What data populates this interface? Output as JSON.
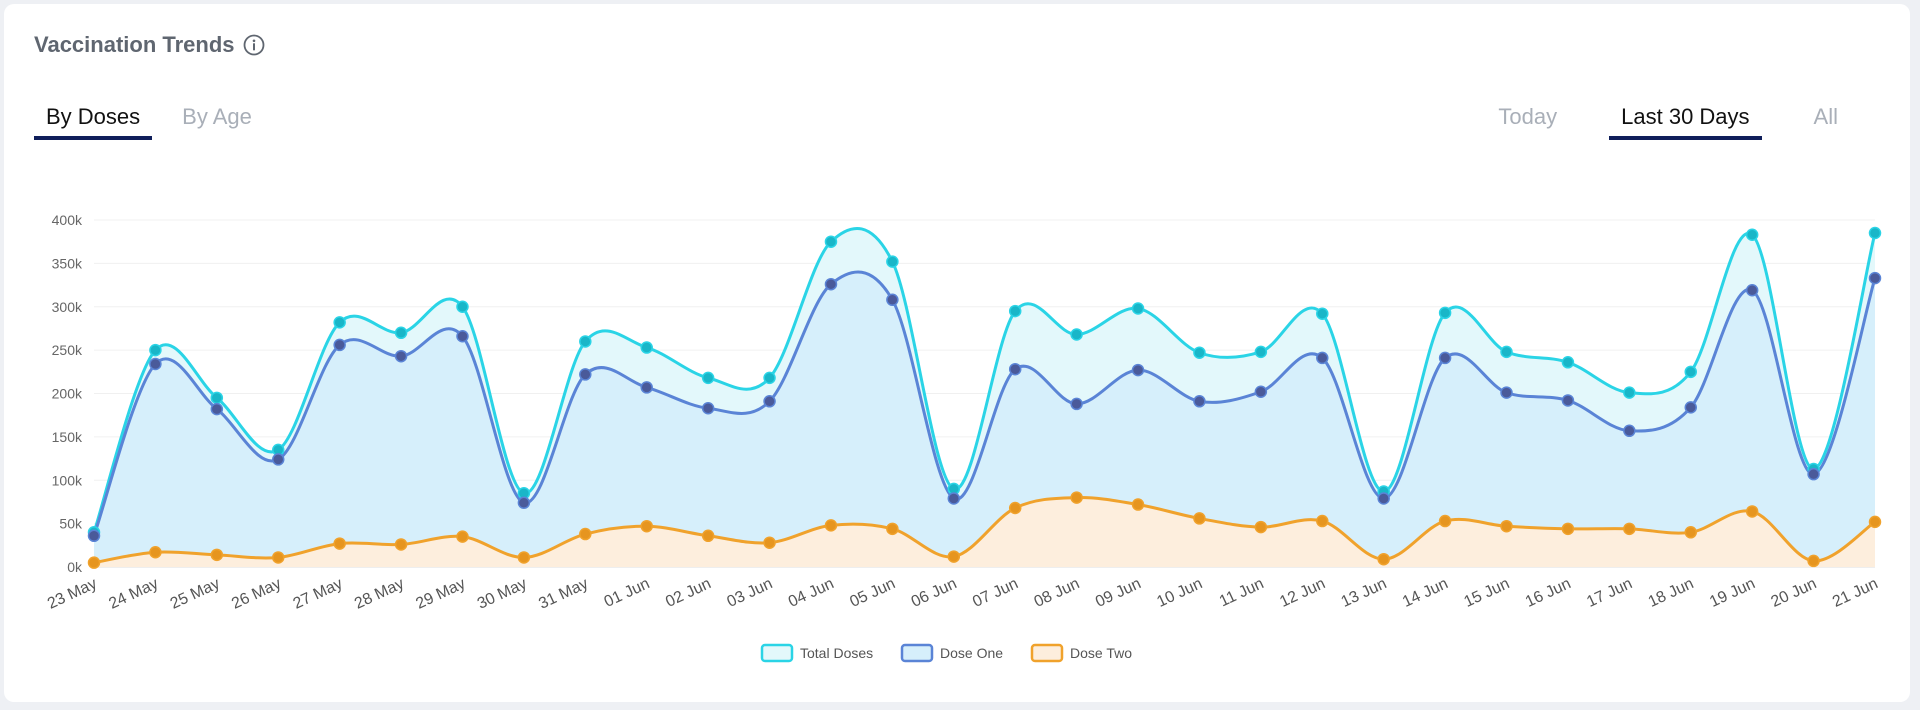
{
  "header": {
    "title": "Vaccination Trends"
  },
  "tabs_left": [
    {
      "label": "By Doses",
      "active": true
    },
    {
      "label": "By Age",
      "active": false
    }
  ],
  "tabs_right": [
    {
      "label": "Today",
      "active": false
    },
    {
      "label": "Last 30 Days",
      "active": true
    },
    {
      "label": "All",
      "active": false
    }
  ],
  "chart_data": {
    "type": "area",
    "ylim": [
      0,
      400000
    ],
    "y_ticks": [
      0,
      50000,
      100000,
      150000,
      200000,
      250000,
      300000,
      350000,
      400000
    ],
    "y_tick_labels": [
      "0k",
      "50k",
      "100k",
      "150k",
      "200k",
      "250k",
      "300k",
      "350k",
      "400k"
    ],
    "categories": [
      "23 May",
      "24 May",
      "25 May",
      "26 May",
      "27 May",
      "28 May",
      "29 May",
      "30 May",
      "31 May",
      "01 Jun",
      "02 Jun",
      "03 Jun",
      "04 Jun",
      "05 Jun",
      "06 Jun",
      "07 Jun",
      "08 Jun",
      "09 Jun",
      "10 Jun",
      "11 Jun",
      "12 Jun",
      "13 Jun",
      "14 Jun",
      "15 Jun",
      "16 Jun",
      "17 Jun",
      "18 Jun",
      "19 Jun",
      "20 Jun",
      "21 Jun"
    ],
    "series": [
      {
        "name": "Total Doses",
        "color": "#2ad4e6",
        "fill": "#e3f8fb",
        "values": [
          40000,
          250000,
          195000,
          135000,
          282000,
          270000,
          300000,
          85000,
          260000,
          253000,
          218000,
          218000,
          375000,
          352000,
          90000,
          295000,
          268000,
          298000,
          247000,
          248000,
          292000,
          87000,
          293000,
          248000,
          236000,
          201000,
          225000,
          383000,
          113000,
          385000
        ]
      },
      {
        "name": "Dose One",
        "color": "#5a84d6",
        "fill": "#d6effb",
        "values": [
          36000,
          234000,
          182000,
          124000,
          256000,
          243000,
          266000,
          74000,
          222000,
          207000,
          183000,
          191000,
          326000,
          308000,
          79000,
          228000,
          188000,
          227000,
          191000,
          202000,
          241000,
          79000,
          241000,
          201000,
          192000,
          157000,
          184000,
          319000,
          107000,
          333000
        ]
      },
      {
        "name": "Dose Two",
        "color": "#f0a22c",
        "fill": "#fdeedd",
        "values": [
          5000,
          17000,
          14000,
          11000,
          27000,
          26000,
          35000,
          11000,
          38000,
          47000,
          36000,
          28000,
          48000,
          44000,
          12000,
          68000,
          80000,
          72000,
          56000,
          46000,
          53000,
          9000,
          53000,
          47000,
          44000,
          44000,
          40000,
          64000,
          7000,
          52000
        ]
      }
    ],
    "legend_position": "bottom-center",
    "grid": true
  }
}
